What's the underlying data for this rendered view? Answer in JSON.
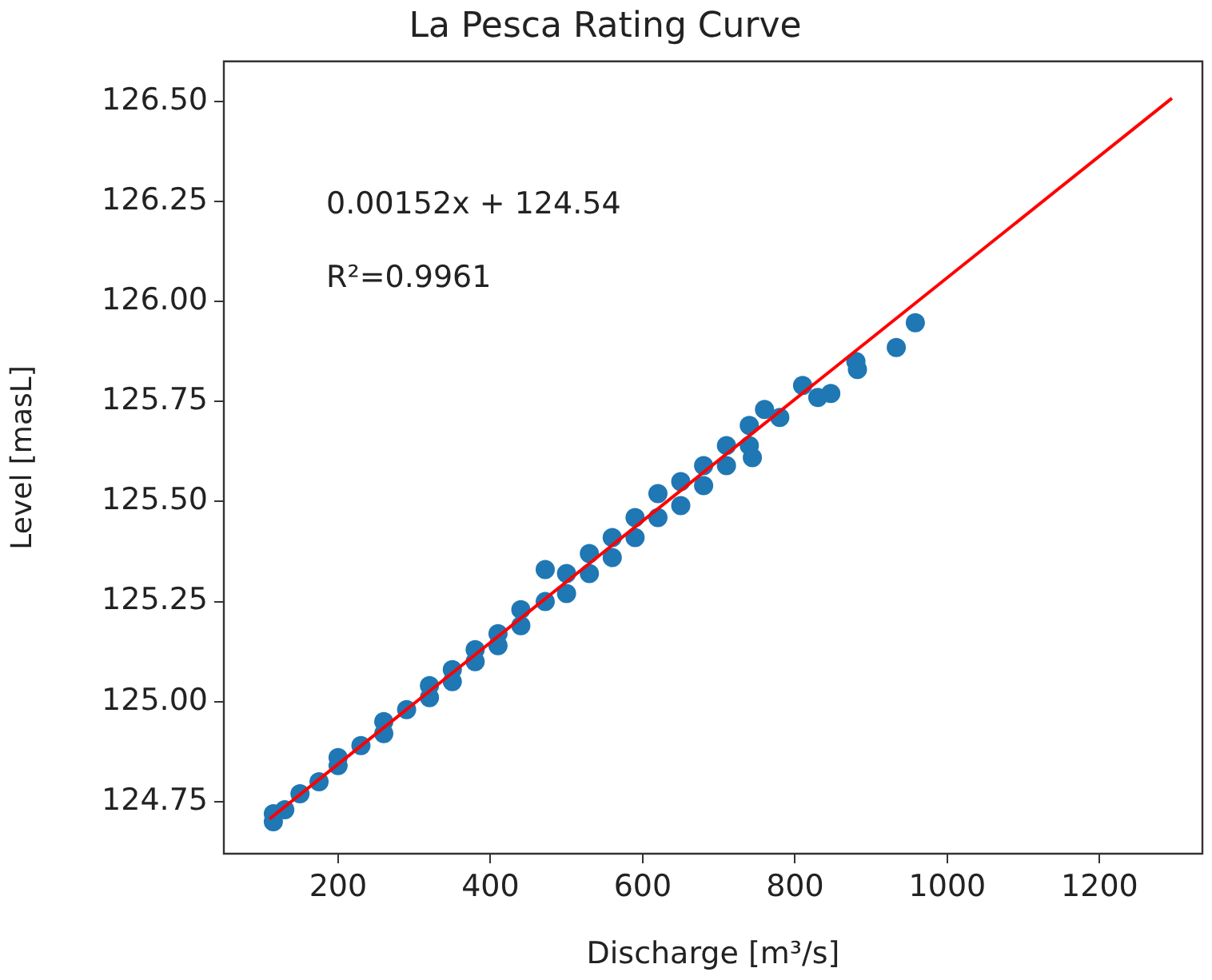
{
  "chart_data": {
    "type": "scatter",
    "title": "La Pesca Rating Curve",
    "xlabel": "Discharge [m³/s]",
    "ylabel": "Level [masL]",
    "annotations": [
      "0.00152x + 124.54",
      "R²=0.9961"
    ],
    "xlim": [
      50,
      1335
    ],
    "ylim": [
      124.62,
      126.6
    ],
    "xticks": [
      200,
      400,
      600,
      800,
      1000,
      1200
    ],
    "yticks": [
      124.75,
      {
        "value": 125,
        "label": "125.00"
      },
      125.25,
      {
        "value": 125.5,
        "label": "125.50"
      },
      125.75,
      {
        "value": 126,
        "label": "126.00"
      },
      126.25,
      {
        "value": 126.5,
        "label": "126.50"
      }
    ],
    "grid": false,
    "legend": false,
    "marker": "circle",
    "series": [
      {
        "color": "#1f77b4",
        "x": [
          115,
          115,
          130,
          150,
          175,
          200,
          200,
          230,
          260,
          260,
          290,
          320,
          320,
          350,
          350,
          380,
          380,
          410,
          410,
          440,
          440,
          472,
          472,
          500,
          500,
          530,
          530,
          560,
          560,
          590,
          590,
          620,
          620,
          650,
          650,
          680,
          680,
          710,
          710,
          740,
          740,
          744,
          760,
          780,
          810,
          830,
          847,
          880,
          882,
          933,
          958
        ],
        "values": [
          124.72,
          124.7,
          124.73,
          124.77,
          124.8,
          124.84,
          124.86,
          124.89,
          124.95,
          124.92,
          124.98,
          125.04,
          125.01,
          125.08,
          125.05,
          125.13,
          125.1,
          125.17,
          125.14,
          125.23,
          125.19,
          125.33,
          125.25,
          125.32,
          125.27,
          125.37,
          125.32,
          125.41,
          125.36,
          125.46,
          125.41,
          125.52,
          125.46,
          125.55,
          125.49,
          125.59,
          125.54,
          125.64,
          125.59,
          125.69,
          125.64,
          125.61,
          125.73,
          125.71,
          125.79,
          125.76,
          125.77,
          125.85,
          125.83,
          125.885,
          125.947
        ]
      },
      {
        "type": "line",
        "color": "#ff0000",
        "marker": "none",
        "line_style": "solid",
        "x": [
          110,
          1295
        ],
        "values": [
          124.707,
          126.508
        ]
      }
    ]
  }
}
